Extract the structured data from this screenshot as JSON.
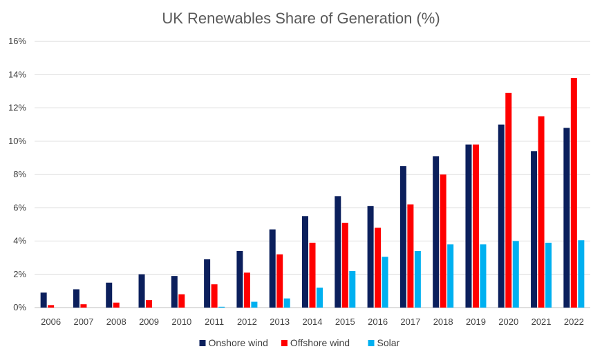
{
  "chart_data": {
    "type": "bar",
    "title": "UK Renewables Share of Generation (%)",
    "xlabel": "",
    "ylabel": "",
    "ylim": [
      0,
      16
    ],
    "yticks": [
      0,
      2,
      4,
      6,
      8,
      10,
      12,
      14,
      16
    ],
    "ytick_labels": [
      "0%",
      "2%",
      "4%",
      "6%",
      "8%",
      "10%",
      "12%",
      "14%",
      "16%"
    ],
    "grid": true,
    "legend_position": "bottom",
    "categories": [
      "2006",
      "2007",
      "2008",
      "2009",
      "2010",
      "2011",
      "2012",
      "2013",
      "2014",
      "2015",
      "2016",
      "2017",
      "2018",
      "2019",
      "2020",
      "2021",
      "2022"
    ],
    "series": [
      {
        "name": "Onshore wind",
        "color": "#0b1f5c",
        "values": [
          0.9,
          1.1,
          1.5,
          2.0,
          1.9,
          2.9,
          3.4,
          4.7,
          5.5,
          6.7,
          6.1,
          8.5,
          9.1,
          9.8,
          11.0,
          9.4,
          10.8
        ]
      },
      {
        "name": "Offshore wind",
        "color": "#ff0000",
        "values": [
          0.15,
          0.2,
          0.3,
          0.45,
          0.8,
          1.4,
          2.1,
          3.2,
          3.9,
          5.1,
          4.8,
          6.2,
          8.0,
          9.8,
          12.9,
          11.5,
          13.8
        ]
      },
      {
        "name": "Solar",
        "color": "#00b0f0",
        "values": [
          0,
          0,
          0,
          0,
          0,
          0.05,
          0.35,
          0.55,
          1.2,
          2.2,
          3.05,
          3.4,
          3.8,
          3.8,
          4.0,
          3.9,
          4.05
        ]
      }
    ]
  }
}
